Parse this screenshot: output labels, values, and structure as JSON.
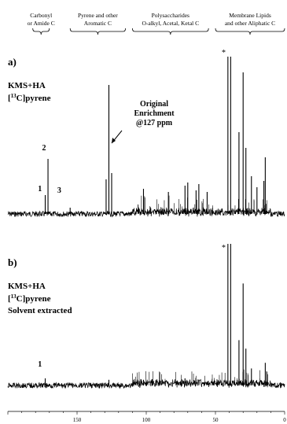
{
  "regions": [
    {
      "line1": "Carbonyl",
      "line2": "or Amide C",
      "from": 182,
      "to": 170
    },
    {
      "line1": "Pyrene and other",
      "line2": "Aromatic C",
      "from": 155,
      "to": 115
    },
    {
      "line1": "Polysaccharides",
      "line2": "O-alkyl, Acetal, Ketal C",
      "from": 110,
      "to": 55
    },
    {
      "line1": "Membrane Lipids",
      "line2": "and other Aliphatic C",
      "from": 50,
      "to": 0
    }
  ],
  "panels": [
    {
      "panel_label": "a)",
      "sample": "KMS+HA",
      "compound_prefix": "[",
      "compound_sup": "13",
      "compound_suffix": "C]pyrene",
      "extra": "",
      "star": "*",
      "peak_labels": [
        "1",
        "2",
        "3"
      ],
      "annotation": [
        "Original",
        "Enrichment",
        "@127 ppm"
      ]
    },
    {
      "panel_label": "b)",
      "sample": "KMS+HA",
      "compound_prefix": "[",
      "compound_sup": "13",
      "compound_suffix": "C]pyrene",
      "extra": "Solvent extracted",
      "star": "*",
      "peak_labels": [
        "1"
      ],
      "annotation": []
    }
  ],
  "chart_data": [
    {
      "type": "line",
      "title": "",
      "xlabel": "",
      "ylabel": "",
      "x_unit": "ppm",
      "x_reversed": true,
      "xlim": [
        200,
        0
      ],
      "x_ticks": [
        150,
        100,
        50,
        0
      ],
      "ylim": [
        0,
        1
      ],
      "peaks": [
        {
          "ppm": 173,
          "height": 0.12,
          "label": "1"
        },
        {
          "ppm": 171,
          "height": 0.35,
          "label": "2"
        },
        {
          "ppm": 155,
          "height": 0.04,
          "label": "3"
        },
        {
          "ppm": 129,
          "height": 0.22
        },
        {
          "ppm": 127,
          "height": 0.82
        },
        {
          "ppm": 125,
          "height": 0.26
        },
        {
          "ppm": 102,
          "height": 0.16
        },
        {
          "ppm": 84,
          "height": 0.14
        },
        {
          "ppm": 72,
          "height": 0.18
        },
        {
          "ppm": 70,
          "height": 0.2
        },
        {
          "ppm": 64,
          "height": 0.15
        },
        {
          "ppm": 62,
          "height": 0.19
        },
        {
          "ppm": 56,
          "height": 0.14
        },
        {
          "ppm": 41,
          "height": 1.0
        },
        {
          "ppm": 39,
          "height": 1.0
        },
        {
          "ppm": 33,
          "height": 0.52
        },
        {
          "ppm": 30,
          "height": 0.9
        },
        {
          "ppm": 28,
          "height": 0.42
        },
        {
          "ppm": 24,
          "height": 0.24
        },
        {
          "ppm": 20,
          "height": 0.17
        },
        {
          "ppm": 15,
          "height": 0.21
        },
        {
          "ppm": 14,
          "height": 0.36
        }
      ]
    },
    {
      "type": "line",
      "title": "",
      "xlabel": "",
      "ylabel": "",
      "x_unit": "ppm",
      "x_reversed": true,
      "xlim": [
        200,
        0
      ],
      "x_ticks": [
        150,
        100,
        50,
        0
      ],
      "ylim": [
        0,
        1
      ],
      "peaks": [
        {
          "ppm": 173,
          "height": 0.05,
          "label": "1"
        },
        {
          "ppm": 127,
          "height": 0.04
        },
        {
          "ppm": 102,
          "height": 0.04
        },
        {
          "ppm": 72,
          "height": 0.05
        },
        {
          "ppm": 41,
          "height": 1.0
        },
        {
          "ppm": 39,
          "height": 1.0
        },
        {
          "ppm": 33,
          "height": 0.32
        },
        {
          "ppm": 30,
          "height": 0.72
        },
        {
          "ppm": 28,
          "height": 0.26
        },
        {
          "ppm": 24,
          "height": 0.12
        },
        {
          "ppm": 14,
          "height": 0.16
        }
      ]
    }
  ]
}
